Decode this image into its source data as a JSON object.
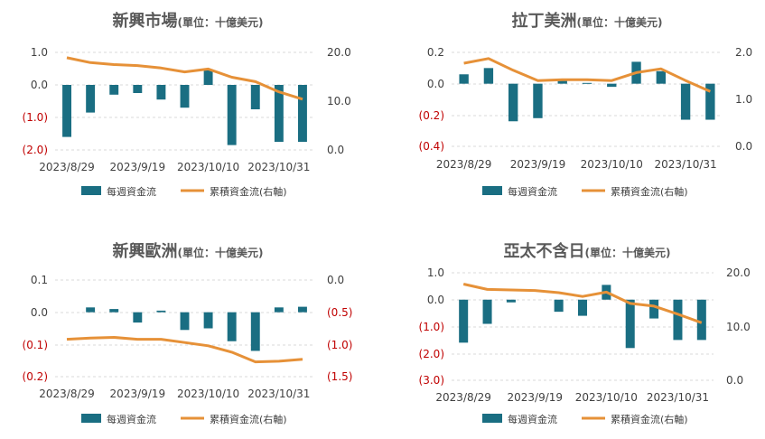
{
  "colors": {
    "bar": "#1a6e82",
    "line": "#e69138",
    "grid": "#d9d9d9",
    "text": "#404040",
    "negative": "#c00000"
  },
  "chart_data": [
    {
      "type": "bar",
      "title": "新興市場",
      "title_unit": "(單位：十億美元)",
      "x_tick_labels": [
        "2023/8/29",
        "2023/9/19",
        "2023/10/10",
        "2023/10/31"
      ],
      "y_tick_labels_left": [
        "1.0",
        "0.0",
        "(1.0)",
        "(2.0)"
      ],
      "y_tick_labels_right": [
        "20.0",
        "10.0",
        "0.0"
      ],
      "ylim_left": [
        -2.0,
        1.0
      ],
      "ylim_right": [
        0.0,
        20.0
      ],
      "series": [
        {
          "name": "每週資金流",
          "type": "bar",
          "axis": "left",
          "values": [
            -1.6,
            -0.85,
            -0.3,
            -0.25,
            -0.45,
            -0.7,
            0.45,
            -1.85,
            -0.75,
            -1.75,
            -1.75
          ]
        },
        {
          "name": "累積資金流(右軸)",
          "type": "line",
          "axis": "right",
          "values": [
            18.9,
            17.9,
            17.5,
            17.3,
            16.8,
            16.0,
            16.6,
            14.9,
            14.0,
            11.9,
            10.4
          ]
        }
      ]
    },
    {
      "type": "bar",
      "title": "拉丁美洲",
      "title_unit": "(單位：十億美元)",
      "x_tick_labels": [
        "2023/8/29",
        "2023/9/19",
        "2023/10/10",
        "2023/10/31"
      ],
      "y_tick_labels_left": [
        "0.2",
        "0.0",
        "(0.2)",
        "(0.4)"
      ],
      "y_tick_labels_right": [
        "2.0",
        "1.0",
        "0.0"
      ],
      "ylim_left": [
        -0.4,
        0.2
      ],
      "ylim_right": [
        0.0,
        2.0
      ],
      "series": [
        {
          "name": "每週資金流",
          "type": "bar",
          "axis": "left",
          "values": [
            0.06,
            0.1,
            -0.24,
            -0.22,
            0.02,
            0.005,
            -0.02,
            0.14,
            0.08,
            -0.23,
            -0.23
          ]
        },
        {
          "name": "累積資金流(右軸)",
          "type": "line",
          "axis": "right",
          "values": [
            1.77,
            1.87,
            1.62,
            1.4,
            1.42,
            1.42,
            1.4,
            1.57,
            1.65,
            1.4,
            1.17
          ]
        }
      ]
    },
    {
      "type": "bar",
      "title": "新興歐洲",
      "title_unit": "(單位：十億美元)",
      "x_tick_labels": [
        "2023/8/29",
        "2023/9/19",
        "2023/10/10",
        "2023/10/31"
      ],
      "y_tick_labels_left": [
        "0.1",
        "0.0",
        "(0.1)",
        "(0.2)"
      ],
      "y_tick_labels_right": [
        "0.0",
        "(0.5)",
        "(1.0)",
        "(1.5)"
      ],
      "ylim_left": [
        -0.2,
        0.1
      ],
      "ylim_right": [
        -1.5,
        0.0
      ],
      "series": [
        {
          "name": "每週資金流",
          "type": "bar",
          "axis": "left",
          "values": [
            0.0,
            0.015,
            0.01,
            -0.032,
            0.005,
            -0.055,
            -0.05,
            -0.09,
            -0.12,
            0.015,
            0.017
          ]
        },
        {
          "name": "累積資金流(右軸)",
          "type": "line",
          "axis": "right",
          "values": [
            -0.92,
            -0.9,
            -0.89,
            -0.92,
            -0.92,
            -0.97,
            -1.02,
            -1.12,
            -1.27,
            -1.26,
            -1.23
          ]
        }
      ]
    },
    {
      "type": "bar",
      "title": "亞太不含日",
      "title_unit": "(單位：十億美元)",
      "x_tick_labels": [
        "2023/8/29",
        "2023/9/19",
        "2023/10/10",
        "2023/10/31"
      ],
      "y_tick_labels_left": [
        "1.0",
        "0.0",
        "(1.0)",
        "(2.0)",
        "(3.0)"
      ],
      "y_tick_labels_right": [
        "20.0",
        "10.0",
        "0.0"
      ],
      "ylim_left": [
        -3.0,
        1.0
      ],
      "ylim_right": [
        0.0,
        20.0
      ],
      "series": [
        {
          "name": "每週資金流",
          "type": "bar",
          "axis": "left",
          "values": [
            -1.6,
            -0.9,
            -0.1,
            0.0,
            -0.45,
            -0.6,
            0.55,
            -1.8,
            -0.7,
            -1.5,
            -1.5
          ]
        },
        {
          "name": "累積資金流(右軸)",
          "type": "line",
          "axis": "right",
          "values": [
            17.9,
            16.9,
            16.8,
            16.7,
            16.3,
            15.6,
            16.4,
            14.3,
            13.8,
            12.3,
            10.7
          ]
        }
      ]
    }
  ]
}
